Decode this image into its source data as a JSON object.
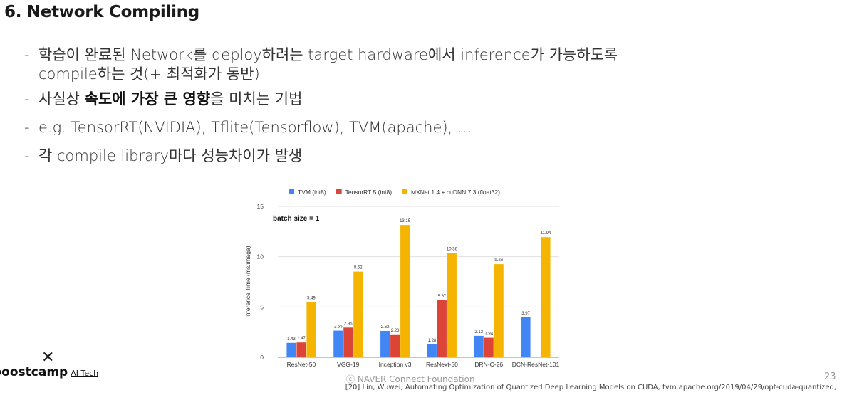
{
  "slide": {
    "title": "6. Network Compiling",
    "bullets": [
      {
        "dash": "-",
        "line1": "학습이 완료된 Network를 deploy하려는 target hardware에서 inference가 가능하도록",
        "line2": "compile하는 것(+ 최적화가 동반)"
      },
      {
        "dash": "-",
        "pre": "사실상 ",
        "bold": "속도에 가장 큰 영향",
        "post": "을 미치는 기법"
      },
      {
        "dash": "-",
        "text": "e.g. TensorRT(NVIDIA), Tflite(Tensorflow), TVM(apache), …"
      },
      {
        "dash": "-",
        "text": "각 compile library마다 성능차이가 발생"
      }
    ]
  },
  "footer": {
    "logo_mark": "✕",
    "logo_text": "boostcamp",
    "logo_sub": "AI Tech",
    "copyright": "ⓒ  NAVER Connect Foundation",
    "page_number": "23",
    "reference": "[20] Lin, Wuwei, Automating Optimization of Quantized Deep Learning Models on CUDA, tvm.apache.org/2019/04/29/opt-cuda-quantized,"
  },
  "chart_data": {
    "type": "bar",
    "categories": [
      "ResNet-50",
      "VGG-19",
      "Inception v3",
      "ResNext-50",
      "DRN-C-26",
      "DCN-ResNet-101"
    ],
    "series": [
      {
        "name": "TVM (int8)",
        "color": "#4285f4",
        "values": [
          1.43,
          2.65,
          2.62,
          1.28,
          2.13,
          3.97
        ],
        "labels": [
          "1.43",
          "2.65",
          "2.62",
          "1.28",
          "2.13",
          "3.97"
        ]
      },
      {
        "name": "TensorRT 5 (int8)",
        "color": "#db4437",
        "values": [
          1.47,
          2.95,
          2.28,
          5.67,
          1.94,
          null
        ],
        "labels": [
          "1.47",
          "2.95",
          "2.28",
          "5.67",
          "1.94",
          ""
        ]
      },
      {
        "name": "MXNet 1.4 + cuDNN 7.3 (float32)",
        "color": "#f4b400",
        "values": [
          5.49,
          8.52,
          13.15,
          10.36,
          9.26,
          11.94
        ],
        "labels": [
          "5.49",
          "8.52",
          "13.15",
          "10.36",
          "9.26",
          "11.94"
        ]
      }
    ],
    "ylabel": "Inference Time (ms/image)",
    "ylim": [
      0,
      15
    ],
    "yticks": [
      "0",
      "5",
      "10",
      "15"
    ],
    "annotation": "batch size = 1",
    "grid": true,
    "legend_position": "top"
  }
}
